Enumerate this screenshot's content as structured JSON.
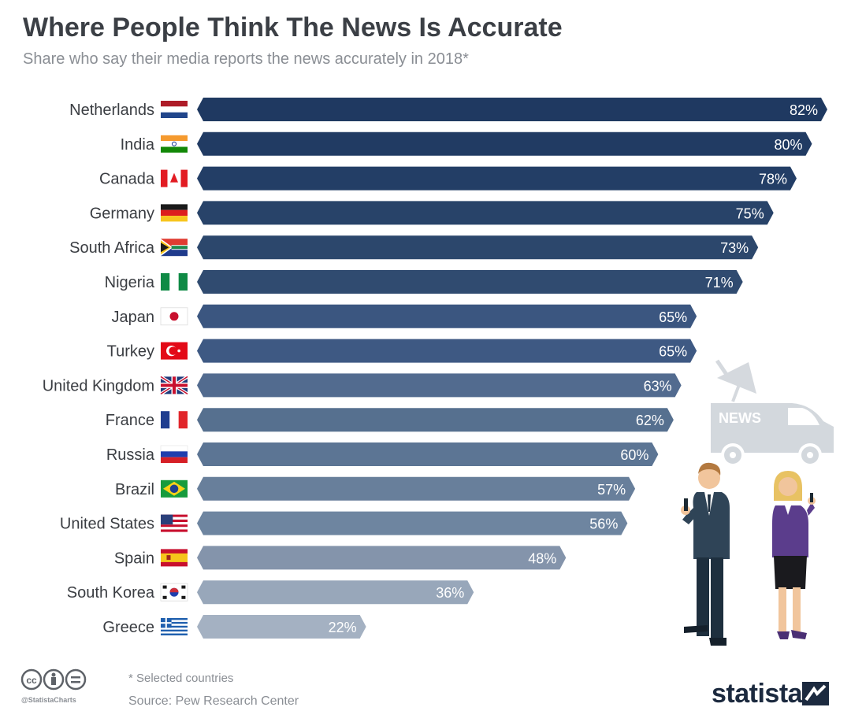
{
  "title": "Where People Think The News Is Accurate",
  "subtitle": "Share who say their media reports the news accurately in 2018*",
  "footnote": "* Selected countries",
  "source": "Source: Pew Research Center",
  "cc_handle": "@StatistaCharts",
  "brand": "statista",
  "van_label": "NEWS",
  "chart_data": {
    "type": "bar",
    "orientation": "horizontal",
    "categories": [
      "Netherlands",
      "India",
      "Canada",
      "Germany",
      "South Africa",
      "Nigeria",
      "Japan",
      "Turkey",
      "United Kingdom",
      "France",
      "Russia",
      "Brazil",
      "United States",
      "Spain",
      "South Korea",
      "Greece"
    ],
    "values": [
      82,
      80,
      78,
      75,
      73,
      71,
      65,
      65,
      63,
      62,
      60,
      57,
      56,
      48,
      36,
      22
    ],
    "value_labels": [
      "82%",
      "80%",
      "78%",
      "75%",
      "73%",
      "71%",
      "65%",
      "65%",
      "63%",
      "62%",
      "60%",
      "57%",
      "56%",
      "48%",
      "36%",
      "22%"
    ],
    "unit": "%",
    "xlim": [
      0,
      82
    ],
    "grid": false,
    "legend": "none",
    "colors": [
      "#1f3961",
      "#213b63",
      "#233e66",
      "#284369",
      "#2c476c",
      "#304b70",
      "#3b5680",
      "#3e5983",
      "#526b8f",
      "#56708f",
      "#5c7594",
      "#687f9b",
      "#6e85a0",
      "#8494ab",
      "#98a7ba",
      "#a4b1c2"
    ],
    "flags": [
      "netherlands",
      "india",
      "canada",
      "germany",
      "south-africa",
      "nigeria",
      "japan",
      "turkey",
      "united-kingdom",
      "france",
      "russia",
      "brazil",
      "united-states",
      "spain",
      "south-korea",
      "greece"
    ]
  }
}
